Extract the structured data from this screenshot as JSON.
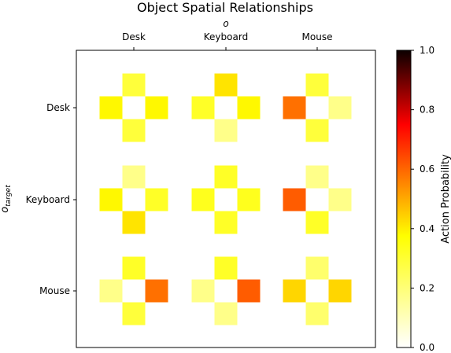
{
  "chart_data": {
    "type": "heatmap",
    "title": "Object Spatial Relationships",
    "xlabel": "o",
    "ylabel": "o",
    "ylabel_subscript": "target",
    "x_categories": [
      "Desk",
      "Keyboard",
      "Mouse"
    ],
    "y_categories": [
      "Desk",
      "Keyboard",
      "Mouse"
    ],
    "colormap": "hot_r",
    "colorbar": {
      "label": "Action Probability",
      "range": [
        0,
        1
      ],
      "ticks": [
        "0.0",
        "0.2",
        "0.4",
        "0.6",
        "0.8",
        "1.0"
      ]
    },
    "cells_order": [
      "up",
      "left",
      "right",
      "down"
    ],
    "cells": [
      [
        {
          "up": 0.2,
          "left": 0.27,
          "right": 0.27,
          "down": 0.2
        },
        {
          "up": 0.3,
          "left": 0.22,
          "right": 0.27,
          "down": 0.12
        },
        {
          "up": 0.2,
          "left": 0.47,
          "right": 0.12,
          "down": 0.2
        }
      ],
      [
        {
          "up": 0.12,
          "left": 0.27,
          "right": 0.22,
          "down": 0.3
        },
        {
          "up": 0.22,
          "left": 0.23,
          "right": 0.23,
          "down": 0.22
        },
        {
          "up": 0.12,
          "left": 0.5,
          "right": 0.12,
          "down": 0.22
        }
      ],
      [
        {
          "up": 0.22,
          "left": 0.12,
          "right": 0.47,
          "down": 0.2
        },
        {
          "up": 0.22,
          "left": 0.12,
          "right": 0.5,
          "down": 0.12
        },
        {
          "up": 0.15,
          "left": 0.32,
          "right": 0.32,
          "down": 0.15
        }
      ]
    ]
  }
}
